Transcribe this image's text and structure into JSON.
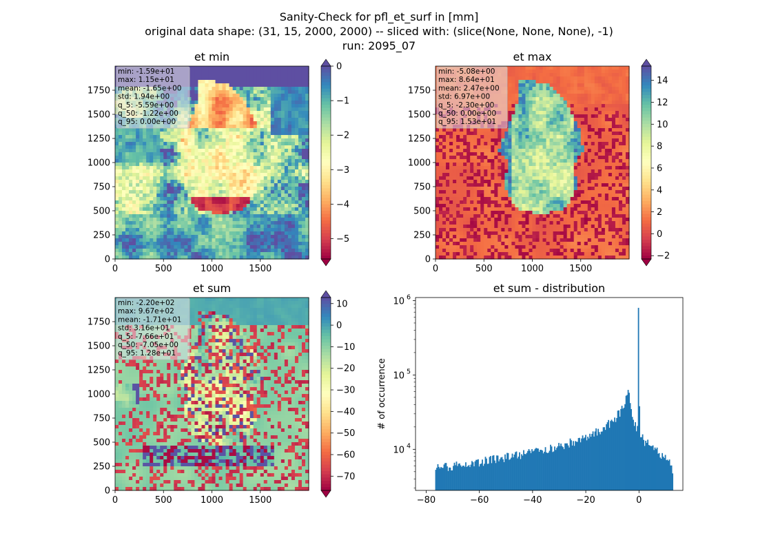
{
  "figure": {
    "title_lines": [
      "Sanity-Check for pfl_et_surf in [mm]",
      "original data shape: (31, 15, 2000, 2000) -- sliced with: (slice(None, None, None), -1)",
      "run: 2095_07"
    ]
  },
  "colormap": {
    "name": "Spectral",
    "stops": [
      "#9e0142",
      "#d53e4f",
      "#f46d43",
      "#fdae61",
      "#fee08b",
      "#ffffbf",
      "#e6f598",
      "#abdda4",
      "#66c2a5",
      "#3288bd",
      "#5e4fa2"
    ]
  },
  "chart_data": [
    {
      "id": "et_min",
      "type": "heatmap",
      "title": "et min",
      "xlim": [
        0,
        2000
      ],
      "ylim": [
        0,
        2000
      ],
      "x_ticks": [
        0,
        500,
        1000,
        1500
      ],
      "y_ticks": [
        0,
        250,
        500,
        750,
        1000,
        1250,
        1500,
        1750
      ],
      "colorbar": {
        "vmin": -5.59,
        "vmax": 0.0,
        "ticks": [
          0,
          -1,
          -2,
          -3,
          -4,
          -5
        ],
        "extend": "both"
      },
      "stats": [
        "min: -1.59e+01",
        "max: 1.15e+01",
        "mean: -1.65e+00",
        "std: 1.94e+00",
        "q_5: -5.59e+00",
        "q_50: -1.22e+00",
        "q_95: 0.00e+00"
      ]
    },
    {
      "id": "et_max",
      "type": "heatmap",
      "title": "et max",
      "xlim": [
        0,
        2000
      ],
      "ylim": [
        0,
        2000
      ],
      "x_ticks": [
        0,
        500,
        1000,
        1500
      ],
      "y_ticks": [
        0,
        250,
        500,
        750,
        1000,
        1250,
        1500,
        1750
      ],
      "colorbar": {
        "vmin": -2.3,
        "vmax": 15.3,
        "ticks": [
          14,
          12,
          10,
          8,
          6,
          4,
          2,
          0,
          -2
        ],
        "extend": "both"
      },
      "stats": [
        "min: -5.08e+00",
        "max: 8.64e+01",
        "mean: 2.47e+00",
        "std: 6.97e+00",
        "q_5: -2.30e+00",
        "q_50: 0.00e+00",
        "q_95: 1.53e+01"
      ]
    },
    {
      "id": "et_sum",
      "type": "heatmap",
      "title": "et sum",
      "xlim": [
        0,
        2000
      ],
      "ylim": [
        0,
        2000
      ],
      "x_ticks": [
        0,
        500,
        1000,
        1500
      ],
      "y_ticks": [
        0,
        250,
        500,
        750,
        1000,
        1250,
        1500,
        1750
      ],
      "colorbar": {
        "vmin": -76.6,
        "vmax": 12.8,
        "ticks": [
          10,
          0,
          -10,
          -20,
          -30,
          -40,
          -50,
          -60,
          -70
        ],
        "extend": "both"
      },
      "stats": [
        "min: -2.20e+02",
        "max: 9.67e+02",
        "mean: -1.71e+01",
        "std: 3.16e+01",
        "q_5: -7.66e+01",
        "q_50: -7.05e+00",
        "q_95: 1.28e+01"
      ]
    },
    {
      "id": "et_sum_dist",
      "type": "bar",
      "title": "et sum - distribution",
      "ylabel": "# of occurrence",
      "xlim": [
        -84,
        16.5
      ],
      "x_ticks": [
        -80,
        -60,
        -40,
        -20,
        0
      ],
      "yscale": "log",
      "ylim": [
        2800,
        1100000
      ],
      "y_ticks": [
        {
          "value": 10000,
          "label": "10",
          "exp": "4"
        },
        {
          "value": 100000,
          "label": "10",
          "exp": "5"
        },
        {
          "value": 1000000,
          "label": "10",
          "exp": "6"
        }
      ],
      "color": "#1f77b4",
      "bin_range": [
        -76.6,
        12.8
      ],
      "bin_count": 230,
      "count_profile": [
        [
          -76.6,
          5500
        ],
        [
          -70,
          6000
        ],
        [
          -60,
          6800
        ],
        [
          -50,
          7800
        ],
        [
          -40,
          9200
        ],
        [
          -30,
          11000
        ],
        [
          -20,
          14500
        ],
        [
          -15,
          18000
        ],
        [
          -10,
          24000
        ],
        [
          -7,
          32000
        ],
        [
          -5,
          45000
        ],
        [
          -4,
          58000
        ],
        [
          -3.6,
          68000
        ],
        [
          -3.2,
          38000
        ],
        [
          -2.5,
          26000
        ],
        [
          -1.5,
          21000
        ],
        [
          -0.6,
          19000
        ],
        [
          -0.3,
          800000
        ],
        [
          0.3,
          16000
        ],
        [
          2,
          13000
        ],
        [
          5,
          10500
        ],
        [
          8,
          8500
        ],
        [
          11,
          7000
        ],
        [
          12.8,
          5200
        ]
      ]
    }
  ]
}
